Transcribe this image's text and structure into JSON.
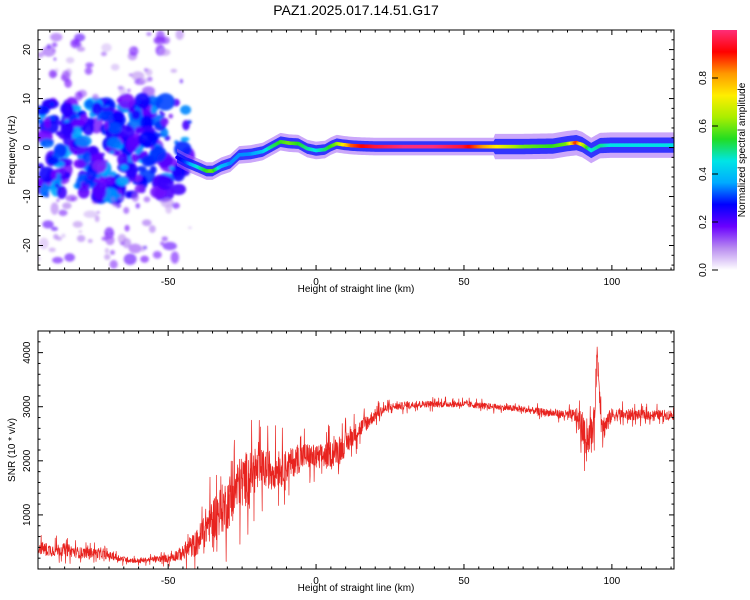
{
  "title": "PAZ1.2025.017.14.51.G17",
  "colors": {
    "axis": "#000000",
    "snr_line": "#e8231f",
    "spectrum_high": "#e8231f",
    "spectrum_mid": "#22dd22",
    "spectrum_low": "#6a00ff"
  },
  "chart_data": [
    {
      "type": "heatmap",
      "name": "spectrogram",
      "xlabel": "Height of straight line (km)",
      "ylabel": "Frequency (Hz)",
      "xlim": [
        -94,
        121
      ],
      "ylim": [
        -25,
        24
      ],
      "xticks": [
        -50,
        0,
        50,
        100
      ],
      "yticks": [
        -20,
        -10,
        0,
        10,
        20
      ],
      "colorbar": {
        "label": "Normalized spectral amplitude",
        "range": [
          0,
          1
        ],
        "ticks": [
          "0.0",
          "0.2",
          "0.4",
          "0.6",
          "0.8"
        ],
        "colors": [
          "#ffffff",
          "#b98cf0",
          "#6a00ff",
          "#0000ff",
          "#00aaff",
          "#00e5e5",
          "#22dd22",
          "#aaee00",
          "#ffee00",
          "#ff9900",
          "#ff0000",
          "#ff2d78"
        ]
      },
      "ridge": {
        "x": [
          -47,
          -44,
          -40,
          -37,
          -35,
          -32,
          -29,
          -26,
          -22,
          -18,
          -15,
          -12,
          -9,
          -6,
          -3,
          0,
          3,
          5,
          7,
          9,
          12,
          15,
          20,
          30,
          40,
          50,
          60,
          70,
          80,
          85,
          88,
          90,
          93,
          96,
          100,
          110,
          121
        ],
        "freq": [
          -2.0,
          -3.0,
          -4.0,
          -4.8,
          -4.8,
          -3.8,
          -3.2,
          -1.5,
          -1.3,
          -0.8,
          0.2,
          1.2,
          0.9,
          0.8,
          -0.2,
          -0.6,
          -0.4,
          0.3,
          0.8,
          0.6,
          0.4,
          0.3,
          0.2,
          0.2,
          0.2,
          0.2,
          0.2,
          0.2,
          0.3,
          0.8,
          1.0,
          0.6,
          -0.6,
          0.4,
          0.5,
          0.5,
          0.5
        ],
        "amplitude": [
          0.25,
          0.3,
          0.45,
          0.55,
          0.6,
          0.4,
          0.35,
          0.35,
          0.35,
          0.4,
          0.5,
          0.55,
          0.6,
          0.55,
          0.5,
          0.45,
          0.5,
          0.55,
          0.6,
          0.7,
          0.85,
          0.9,
          0.95,
          1.0,
          1.0,
          0.95,
          0.75,
          0.6,
          0.55,
          0.6,
          0.9,
          0.7,
          0.45,
          0.5,
          0.45,
          0.45,
          0.45
        ]
      }
    },
    {
      "type": "line",
      "name": "snr",
      "xlabel": "Height of straight line (km)",
      "ylabel": "SNR (10 * v/v)",
      "xlim": [
        -94,
        121
      ],
      "ylim": [
        0,
        4400
      ],
      "xticks": [
        -50,
        0,
        50,
        100
      ],
      "yticks": [
        1000,
        2000,
        3000,
        4000
      ],
      "series": [
        {
          "x": [
            -94,
            -90,
            -85,
            -80,
            -75,
            -70,
            -65,
            -60,
            -55,
            -50,
            -45,
            -40,
            -37,
            -34,
            -30,
            -27,
            -24,
            -22,
            -20,
            -17,
            -14,
            -10,
            -7,
            -4,
            0,
            3,
            6,
            10,
            13,
            17,
            20,
            23,
            26,
            30,
            35,
            40,
            50,
            60,
            70,
            80,
            85,
            88,
            90,
            91,
            93,
            94,
            95,
            96,
            97,
            100,
            110,
            121
          ],
          "values": [
            400,
            350,
            360,
            300,
            300,
            250,
            180,
            150,
            180,
            200,
            300,
            500,
            800,
            1000,
            1200,
            1500,
            1650,
            1800,
            1800,
            1850,
            1850,
            1900,
            2000,
            2100,
            2050,
            2100,
            2150,
            2300,
            2500,
            2700,
            2850,
            2950,
            3000,
            3020,
            3050,
            3050,
            3050,
            3000,
            2950,
            2880,
            2850,
            2820,
            2600,
            2400,
            2500,
            2700,
            4000,
            3200,
            2600,
            2850,
            2850,
            2850
          ],
          "spread": [
            200,
            200,
            190,
            170,
            150,
            120,
            90,
            70,
            80,
            120,
            220,
            420,
            600,
            700,
            800,
            850,
            850,
            700,
            700,
            600,
            600,
            500,
            450,
            420,
            400,
            380,
            420,
            380,
            300,
            250,
            180,
            150,
            120,
            110,
            100,
            100,
            100,
            90,
            100,
            110,
            140,
            260,
            450,
            500,
            450,
            500,
            400,
            500,
            400,
            200,
            150,
            150
          ]
        }
      ]
    }
  ]
}
